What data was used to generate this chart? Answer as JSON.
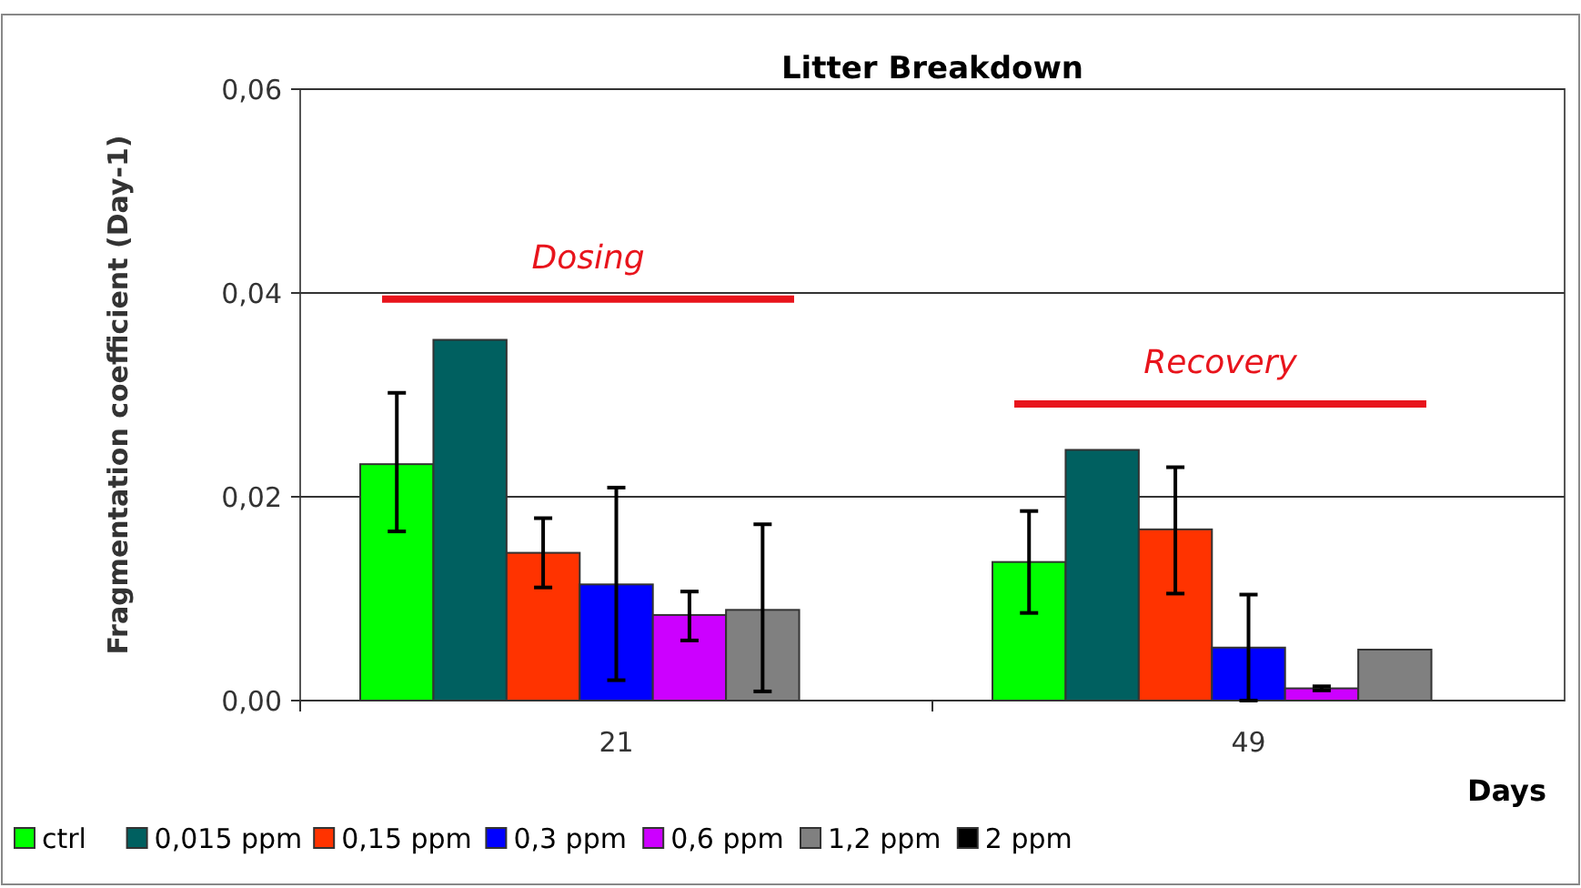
{
  "chart_data": {
    "type": "bar",
    "title": "Litter Breakdown",
    "xlabel": "Days",
    "ylabel": "Fragmentation coefficient (Day-1)",
    "categories": [
      "21",
      "49"
    ],
    "series": [
      {
        "name": "ctrl",
        "color": "#00ff00",
        "values": [
          0.0232,
          0.0136
        ],
        "errors": [
          [
            0.0166,
            0.0302
          ],
          [
            0.0086,
            0.0186
          ]
        ]
      },
      {
        "name": "0,015 ppm",
        "color": "#006060",
        "values": [
          0.0354,
          0.0246
        ]
      },
      {
        "name": "0,15 ppm",
        "color": "#ff3300",
        "values": [
          0.0145,
          0.0168
        ],
        "errors": [
          [
            0.0111,
            0.0179
          ],
          [
            0.0105,
            0.0229
          ]
        ]
      },
      {
        "name": "0,3 ppm",
        "color": "#0000ff",
        "values": [
          0.0114,
          0.0052
        ],
        "errors": [
          [
            0.002,
            0.0209
          ],
          [
            0.0,
            0.0104
          ]
        ]
      },
      {
        "name": "0,6 ppm",
        "color": "#cc00ff",
        "values": [
          0.0084,
          0.0012
        ],
        "errors": [
          [
            0.0059,
            0.0107
          ],
          [
            0.001,
            0.0014
          ]
        ]
      },
      {
        "name": "1,2 ppm",
        "color": "#808080",
        "values": [
          0.0089,
          0.005
        ],
        "errors": [
          [
            0.0009,
            0.0173
          ],
          null
        ]
      },
      {
        "name": "2 ppm",
        "color": "#000000",
        "values": [
          null,
          null
        ]
      }
    ],
    "ylim": [
      0,
      0.06
    ],
    "yticks": [
      {
        "value": 0,
        "label": "0,00"
      },
      {
        "value": 0.02,
        "label": "0,02"
      },
      {
        "value": 0.04,
        "label": "0,04"
      },
      {
        "value": 0.06,
        "label": "0,06"
      }
    ],
    "grid": "y",
    "legend": "bottom",
    "ref_lines": [
      {
        "axis": "y",
        "value": 0.0394,
        "label": "Dosing",
        "color": "#e8141c"
      },
      {
        "axis": "y",
        "value": 0.0291,
        "label": "Recovery",
        "color": "#e8141c"
      }
    ]
  }
}
